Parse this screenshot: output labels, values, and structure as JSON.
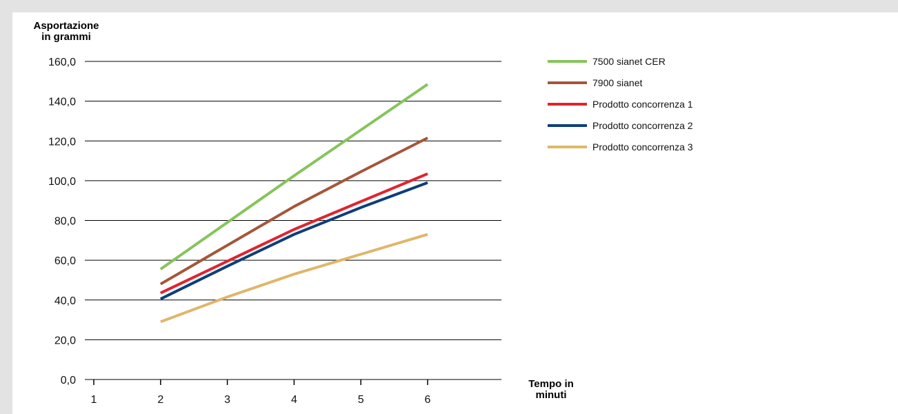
{
  "chart_data": {
    "type": "line",
    "ylabel_line1": "Asportazione",
    "ylabel_line2": "in grammi",
    "xlabel_line1": "Tempo in",
    "xlabel_line2": "minuti",
    "x_ticks": [
      "1",
      "2",
      "3",
      "4",
      "5",
      "6"
    ],
    "y_ticks": [
      "0,0",
      "20,0",
      "40,0",
      "60,0",
      "80,0",
      "100,0",
      "120,0",
      "140,0",
      "160,0"
    ],
    "xlim": [
      1,
      6
    ],
    "ylim": [
      0,
      160
    ],
    "grid": true,
    "legend_position": "top-right",
    "x": [
      2,
      3,
      4,
      5,
      6
    ],
    "series": [
      {
        "name": "7500 sianet CER",
        "color": "#86c45a",
        "values": [
          55.5,
          79,
          102.5,
          125.5,
          148.5
        ]
      },
      {
        "name": "7900 sianet",
        "color": "#a5563a",
        "values": [
          48,
          67.5,
          87,
          104.5,
          121.5
        ]
      },
      {
        "name": "Prodotto concorrenza 1",
        "color": "#e2232e",
        "values": [
          43.5,
          59.5,
          75.5,
          89.5,
          103.5
        ]
      },
      {
        "name": "Prodotto concorrenza 2",
        "color": "#0b3f78",
        "values": [
          40.5,
          57,
          73,
          86.5,
          99
        ]
      },
      {
        "name": "Prodotto concorrenza 3",
        "color": "#e0b66a",
        "values": [
          29,
          41.5,
          53,
          63,
          73
        ]
      }
    ]
  }
}
